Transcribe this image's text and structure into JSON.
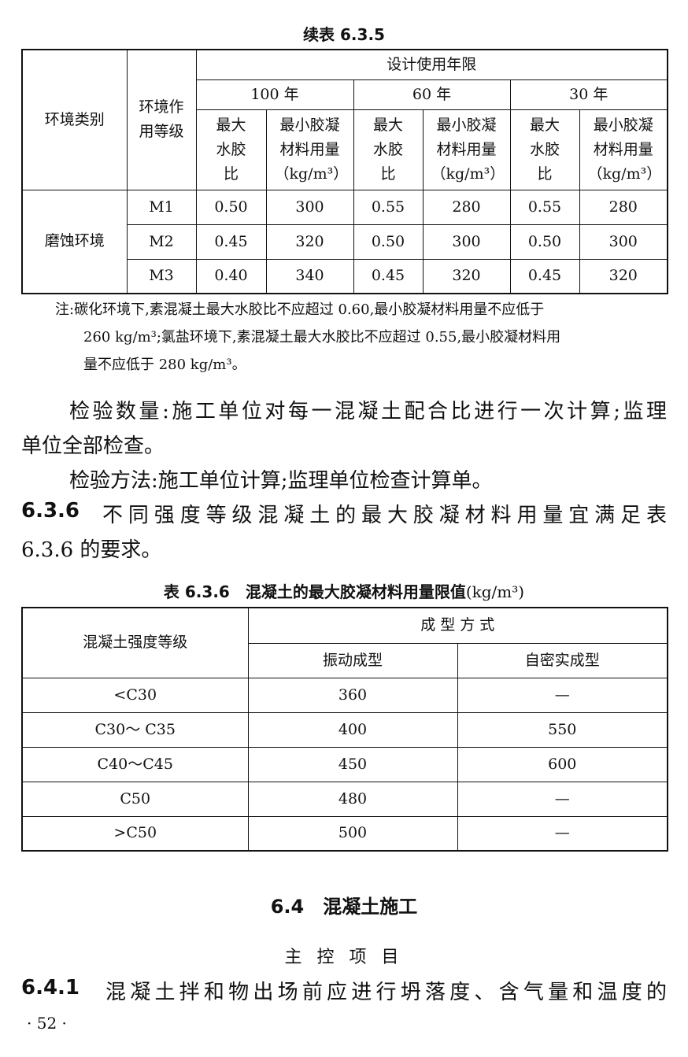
{
  "table1": {
    "caption": "续表 6.3.5",
    "h_env": "环境类别",
    "h_grade": "环境作用等级",
    "h_life": "设计使用年限",
    "years": [
      "100 年",
      "60 年",
      "30 年"
    ],
    "h_wb": "最大水胶比",
    "h_min": "最小胶凝材料用量",
    "h_unit": "（kg/m³）",
    "group": "磨蚀环境",
    "rows": [
      {
        "grade": "M1",
        "v": [
          "0.50",
          "300",
          "0.55",
          "280",
          "0.55",
          "280"
        ]
      },
      {
        "grade": "M2",
        "v": [
          "0.45",
          "320",
          "0.50",
          "300",
          "0.50",
          "300"
        ]
      },
      {
        "grade": "M3",
        "v": [
          "0.40",
          "340",
          "0.45",
          "320",
          "0.45",
          "320"
        ]
      }
    ]
  },
  "note": {
    "l1": "注:碳化环境下,素混凝土最大水胶比不应超过 0.60,最小胶凝材料用量不应低于",
    "l2": "260 kg/m³;氯盐环境下,素混凝土最大水胶比不应超过 0.55,最小胶凝材料用",
    "l3": "量不应低于 280 kg/m³。"
  },
  "para": {
    "l1": "检验数量:施工单位对每一混凝土配合比进行一次计算;监理",
    "l2": "单位全部检查。",
    "l3": "检验方法:施工单位计算;监理单位检查计算单。",
    "s636_num": "6.3.6",
    "l4": "不同强度等级混凝土的最大胶凝材料用量宜满足表",
    "l5": "6.3.6 的要求。"
  },
  "table2": {
    "caption": "表 6.3.6　混凝土的最大胶凝材料用量限值",
    "caption_unit": "(kg/m³)",
    "h_grade": "混凝土强度等级",
    "h_method": "成 型 方 式",
    "h_vib": "振动成型",
    "h_self": "自密实成型",
    "rows": [
      {
        "g": "<C30",
        "a": "360",
        "b": "—"
      },
      {
        "g": "C30～ C35",
        "a": "400",
        "b": "550"
      },
      {
        "g": "C40～C45",
        "a": "450",
        "b": "600"
      },
      {
        "g": "C50",
        "a": "480",
        "b": "—"
      },
      {
        "g": ">C50",
        "a": "500",
        "b": "—"
      }
    ]
  },
  "section": {
    "title": "6.4　混凝土施工",
    "sub": "主 控 项 目",
    "s641_num": "6.4.1",
    "s641": "混凝土拌和物出场前应进行坍落度、含气量和温度的"
  },
  "page_number": "· 52 ·"
}
